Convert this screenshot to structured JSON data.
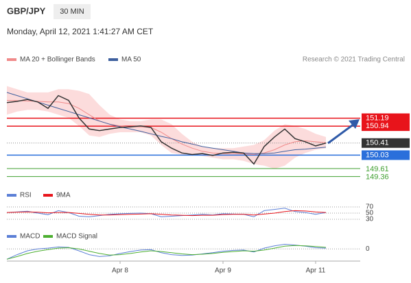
{
  "chart_data": {
    "type": "line",
    "title": "GBP/JPY",
    "timeframe": "30 MIN",
    "subtitle": "Monday, April 12, 2021 1:41:27 AM CET",
    "credit": "Research © 2021 Trading Central",
    "categories": [
      null,
      null,
      null,
      null,
      null,
      null,
      null,
      null,
      null,
      null,
      null,
      "Apr 8",
      null,
      null,
      null,
      null,
      null,
      null,
      null,
      null,
      null,
      "Apr 9",
      null,
      null,
      null,
      null,
      null,
      null,
      null,
      null,
      "Apr 11",
      null
    ],
    "ylim": [
      149.2,
      152.75
    ],
    "price": {
      "color": "#333333",
      "values": [
        151.68,
        151.72,
        151.78,
        151.7,
        151.5,
        151.9,
        151.75,
        151.2,
        150.85,
        150.8,
        150.85,
        150.9,
        150.92,
        150.95,
        150.9,
        150.45,
        150.25,
        150.1,
        150.05,
        150.08,
        150.02,
        150.1,
        150.12,
        150.1,
        149.75,
        150.3,
        150.6,
        150.85,
        150.55,
        150.45,
        150.32,
        150.41
      ]
    },
    "series": [
      {
        "name": "MA 20 + Bollinger Bands",
        "color": "#f08a8a",
        "band_color": "#fcdcdc",
        "values": [
          151.75,
          151.74,
          151.73,
          151.72,
          151.7,
          151.7,
          151.65,
          151.5,
          151.3,
          151.1,
          151.0,
          150.95,
          150.92,
          150.92,
          150.9,
          150.75,
          150.55,
          150.38,
          150.25,
          150.15,
          150.1,
          150.08,
          150.08,
          150.07,
          150.05,
          150.1,
          150.2,
          150.35,
          150.45,
          150.48,
          150.45,
          150.42
        ],
        "upper": [
          152.2,
          152.1,
          152.0,
          152.0,
          152.0,
          152.1,
          152.1,
          152.05,
          151.95,
          151.6,
          151.3,
          151.15,
          151.1,
          151.1,
          151.15,
          151.15,
          151.0,
          150.7,
          150.45,
          150.3,
          150.25,
          150.25,
          150.25,
          150.3,
          150.35,
          150.5,
          150.8,
          151.0,
          150.95,
          150.85,
          150.7,
          150.6
        ],
        "lower": [
          151.3,
          151.4,
          151.45,
          151.45,
          151.4,
          151.3,
          151.2,
          150.95,
          150.65,
          150.6,
          150.7,
          150.75,
          150.75,
          150.75,
          150.65,
          150.35,
          150.1,
          150.05,
          150.05,
          150.0,
          149.95,
          149.9,
          149.9,
          149.85,
          149.75,
          149.7,
          149.6,
          149.7,
          149.95,
          150.1,
          150.2,
          150.25
        ]
      },
      {
        "name": "MA 50",
        "color": "#3d5f9e",
        "values": [
          152.0,
          151.9,
          151.8,
          151.7,
          151.6,
          151.5,
          151.4,
          151.3,
          151.2,
          151.1,
          151.0,
          150.92,
          150.85,
          150.78,
          150.7,
          150.62,
          150.55,
          150.45,
          150.38,
          150.3,
          150.25,
          150.2,
          150.15,
          150.1,
          150.08,
          150.08,
          150.1,
          150.15,
          150.2,
          150.22,
          150.25,
          150.28
        ]
      }
    ],
    "levels": [
      {
        "value": 151.19,
        "color": "#e8141b",
        "boxed": true
      },
      {
        "value": 150.94,
        "color": "#e8141b",
        "boxed": true
      },
      {
        "value": 150.03,
        "color": "#2a6fdb",
        "boxed": true
      },
      {
        "value": 149.61,
        "color": "#3f9f2f",
        "boxed": false
      },
      {
        "value": 149.36,
        "color": "#3f9f2f",
        "boxed": false
      }
    ],
    "last": {
      "value": 150.41,
      "color": "#333333"
    },
    "rsi": {
      "ylim": [
        20,
        100
      ],
      "yticks": [
        70,
        50,
        30
      ],
      "series": [
        {
          "name": "RSI",
          "color": "#5b7fd6",
          "values": [
            52,
            54,
            56,
            50,
            45,
            58,
            52,
            40,
            38,
            42,
            46,
            48,
            49,
            50,
            48,
            38,
            40,
            42,
            44,
            46,
            44,
            48,
            47,
            46,
            38,
            58,
            62,
            66,
            55,
            52,
            46,
            52
          ]
        },
        {
          "name": "9MA",
          "color": "#e8141b",
          "values": [
            52,
            53,
            54,
            53,
            51,
            52,
            52,
            49,
            46,
            44,
            44,
            45,
            46,
            47,
            48,
            46,
            44,
            43,
            42,
            43,
            43,
            45,
            46,
            46,
            44,
            47,
            50,
            55,
            58,
            57,
            54,
            52
          ]
        }
      ]
    },
    "macd": {
      "ylim": [
        -0.3,
        0.2
      ],
      "yticks": [
        0
      ],
      "series": [
        {
          "name": "MACD",
          "color": "#5b7fd6",
          "values": [
            -0.27,
            -0.15,
            -0.05,
            0.0,
            0.02,
            0.05,
            0.04,
            -0.05,
            -0.15,
            -0.2,
            -0.18,
            -0.12,
            -0.07,
            -0.03,
            -0.02,
            -0.1,
            -0.15,
            -0.17,
            -0.16,
            -0.13,
            -0.1,
            -0.06,
            -0.04,
            -0.03,
            -0.08,
            0.02,
            0.08,
            0.12,
            0.1,
            0.07,
            0.03,
            0.02
          ]
        },
        {
          "name": "MACD Signal",
          "color": "#4caf30",
          "values": [
            -0.27,
            -0.2,
            -0.12,
            -0.06,
            -0.02,
            0.02,
            0.03,
            0.0,
            -0.06,
            -0.12,
            -0.16,
            -0.15,
            -0.12,
            -0.08,
            -0.05,
            -0.07,
            -0.1,
            -0.13,
            -0.15,
            -0.14,
            -0.12,
            -0.09,
            -0.07,
            -0.05,
            -0.06,
            -0.03,
            0.02,
            0.07,
            0.09,
            0.08,
            0.06,
            0.04
          ]
        }
      ]
    }
  }
}
